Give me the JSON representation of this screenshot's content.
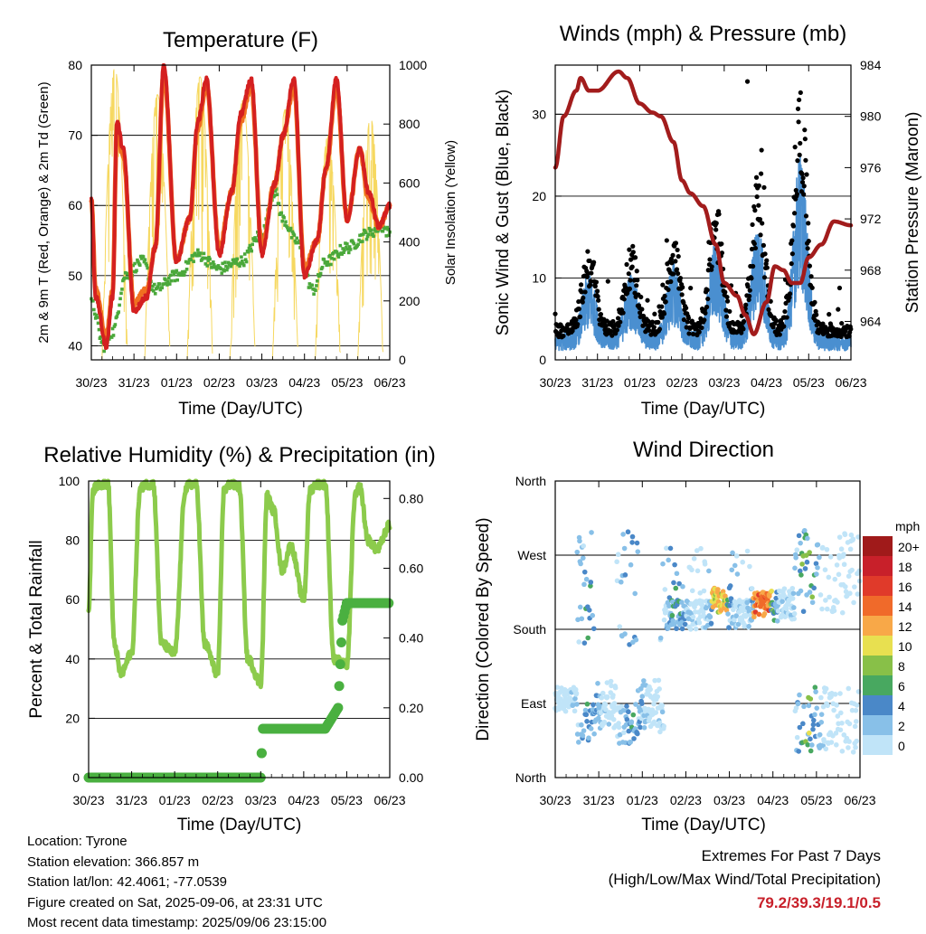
{
  "colors": {
    "red": "#d42020",
    "orange": "#f07020",
    "green": "#4aa83a",
    "yellow": "#f6d860",
    "black": "#000000",
    "blue": "#4a8fd0",
    "maroon": "#a21c1c",
    "rh": "#8ccb4c",
    "precip": "#4ab040",
    "extremes": "#c8202a"
  },
  "charts": {
    "temperature": {
      "title": "Temperature (F)",
      "xlabel": "Time (Day/UTC)",
      "ylabel": "2m & 9m T (Red, Orange) & 2m Td (Green)",
      "ylabel_right": "Solar Insolation (Yellow)"
    },
    "wind": {
      "title": "Winds (mph) & Pressure (mb)",
      "xlabel": "Time (Day/UTC)",
      "ylabel": "Sonic Wind & Gust (Blue, Black)",
      "ylabel_right": "Station Pressure (Maroon)"
    },
    "rh": {
      "title": "Relative Humidity (%) & Precipitation (in)",
      "xlabel": "Time (Day/UTC)",
      "ylabel": "Percent & Total Rainfall"
    },
    "direction": {
      "title": "Wind Direction",
      "xlabel": "Time (Day/UTC)",
      "ylabel": "Direction (Colored By Speed)",
      "colorbar_title": "mph"
    }
  },
  "chart_data": [
    {
      "type": "line",
      "title": "Temperature (F)",
      "xlabel": "Time (Day/UTC)",
      "ylabel": "2m & 9m T (Red, Orange) & 2m Td (Green)",
      "ylabel_right": "Solar Insolation (Yellow)",
      "x_ticks": [
        "30/23",
        "31/23",
        "01/23",
        "02/23",
        "03/23",
        "04/23",
        "05/23",
        "06/23"
      ],
      "xlim_days": [
        0,
        7.0
      ],
      "ylim": [
        38,
        80
      ],
      "y_ticks": [
        40,
        50,
        60,
        70,
        80
      ],
      "y2lim": [
        0,
        1000
      ],
      "y2_ticks": [
        0,
        200,
        400,
        600,
        800,
        1000
      ],
      "series": [
        {
          "name": "2m T",
          "x": [
            0,
            0.1,
            0.35,
            0.5,
            0.6,
            0.75,
            1.0,
            1.3,
            1.5,
            1.7,
            2.0,
            2.3,
            2.5,
            2.7,
            3.0,
            3.3,
            3.5,
            3.75,
            4.0,
            4.3,
            4.5,
            4.75,
            5.0,
            5.3,
            5.5,
            5.75,
            6.0,
            6.3,
            6.5,
            6.75,
            7.0
          ],
          "y": [
            61,
            47,
            40,
            47,
            72,
            68,
            45,
            47,
            54,
            80,
            52,
            58,
            72,
            78,
            53,
            62,
            73,
            78,
            53,
            63,
            70,
            78,
            50,
            55,
            65,
            78,
            58,
            68,
            62,
            57,
            60
          ]
        },
        {
          "name": "9m T",
          "x": [
            0,
            0.1,
            0.35,
            0.5,
            0.6,
            0.75,
            1.0,
            1.3,
            1.5,
            1.7,
            2.0,
            2.3,
            2.5,
            2.7,
            3.0,
            3.3,
            3.5,
            3.75,
            4.0,
            4.3,
            4.5,
            4.75,
            5.0,
            5.3,
            5.5,
            5.75,
            6.0,
            6.3,
            6.5,
            6.75,
            7.0
          ],
          "y": [
            61,
            48,
            41,
            48,
            71,
            67,
            46,
            48,
            54,
            79,
            52,
            58,
            71,
            77,
            54,
            62,
            72,
            77,
            54,
            63,
            70,
            77,
            51,
            55,
            65,
            77,
            58,
            68,
            61,
            57,
            60
          ]
        },
        {
          "name": "2m Td",
          "x": [
            0,
            0.3,
            0.5,
            0.8,
            1.2,
            1.5,
            2.0,
            2.5,
            3.0,
            3.5,
            4.0,
            4.3,
            4.5,
            4.8,
            5.2,
            5.5,
            6.0,
            6.5,
            6.8,
            7.0
          ],
          "y": [
            46,
            40,
            42,
            50,
            52,
            48,
            50,
            53,
            51,
            52,
            56,
            62,
            58,
            55,
            48,
            52,
            54,
            56,
            57,
            56
          ]
        },
        {
          "name": "Solar Insolation",
          "axis": "right",
          "peaks_x": [
            0.55,
            1.55,
            2.55,
            3.55,
            4.55,
            5.55,
            6.55
          ],
          "peaks_y": [
            990,
            900,
            960,
            880,
            850,
            760,
            820
          ]
        }
      ]
    },
    {
      "type": "line",
      "title": "Winds (mph) & Pressure (mb)",
      "xlabel": "Time (Day/UTC)",
      "ylabel": "Sonic Wind & Gust (Blue, Black)",
      "ylabel_right": "Station Pressure (Maroon)",
      "x_ticks": [
        "30/23",
        "31/23",
        "01/23",
        "02/23",
        "03/23",
        "04/23",
        "05/23",
        "06/23"
      ],
      "xlim_days": [
        0,
        7.0
      ],
      "ylim": [
        0,
        36
      ],
      "y_ticks": [
        0,
        10,
        20,
        30
      ],
      "y2lim": [
        961,
        984
      ],
      "y2_ticks": [
        964,
        968,
        972,
        976,
        980,
        984
      ],
      "series": [
        {
          "name": "Pressure",
          "axis": "right",
          "x": [
            0,
            0.2,
            0.5,
            0.6,
            0.8,
            1.0,
            1.5,
            1.7,
            2.0,
            2.3,
            2.5,
            2.8,
            3.0,
            3.2,
            3.5,
            3.8,
            4.0,
            4.3,
            4.5,
            4.7,
            5.0,
            5.2,
            5.4,
            5.6,
            5.8,
            6.0,
            6.3,
            6.6,
            7.0
          ],
          "y": [
            976,
            980,
            982,
            983,
            982,
            982,
            983.5,
            983,
            981,
            980.3,
            980,
            978,
            975,
            974,
            973,
            970,
            967,
            966,
            964.5,
            963,
            965.5,
            968.3,
            968,
            967,
            967,
            969,
            970,
            971.8,
            971.5
          ]
        },
        {
          "name": "Sonic Wind",
          "daily_peaks_x": [
            0.8,
            1.8,
            2.8,
            3.8,
            4.8,
            5.8
          ],
          "daily_peaks_y": [
            8,
            8,
            9,
            11,
            13,
            19
          ]
        },
        {
          "name": "Gust",
          "max": 34
        }
      ]
    },
    {
      "type": "line",
      "title": "Relative Humidity (%) & Precipitation (in)",
      "xlabel": "Time (Day/UTC)",
      "ylabel": "Percent & Total Rainfall",
      "x_ticks": [
        "30/23",
        "31/23",
        "01/23",
        "02/23",
        "03/23",
        "04/23",
        "05/23",
        "06/23"
      ],
      "xlim_days": [
        0,
        7.0
      ],
      "ylim": [
        0,
        100
      ],
      "y_ticks": [
        0,
        20,
        40,
        60,
        80,
        100
      ],
      "y2lim": [
        0,
        0.85
      ],
      "y2_ticks": [
        0.0,
        0.2,
        0.4,
        0.6,
        0.8
      ],
      "series": [
        {
          "name": "Relative Humidity",
          "x": [
            0,
            0.1,
            0.25,
            0.45,
            0.6,
            0.75,
            1.0,
            1.2,
            1.3,
            1.5,
            1.7,
            2.0,
            2.25,
            2.35,
            2.5,
            2.7,
            3.0,
            3.15,
            3.3,
            3.5,
            3.7,
            4.0,
            4.15,
            4.3,
            4.5,
            4.7,
            5.0,
            5.15,
            5.3,
            5.5,
            5.7,
            6.0,
            6.2,
            6.3,
            6.5,
            6.7,
            7.0
          ],
          "y": [
            57,
            97,
            99,
            99,
            45,
            35,
            42,
            97,
            99,
            99,
            45,
            42,
            97,
            99,
            99,
            45,
            35,
            97,
            99,
            98,
            40,
            32,
            95,
            90,
            70,
            78,
            60,
            97,
            99,
            99,
            40,
            38,
            95,
            98,
            80,
            77,
            85
          ]
        },
        {
          "name": "Total Precipitation",
          "axis": "right",
          "x": [
            0,
            4.0,
            4.05,
            4.2,
            5.5,
            5.8,
            5.9,
            6.0,
            7.0
          ],
          "y": [
            0,
            0,
            0.14,
            0.14,
            0.14,
            0.2,
            0.45,
            0.5,
            0.5
          ]
        }
      ]
    },
    {
      "type": "scatter",
      "title": "Wind Direction",
      "xlabel": "Time (Day/UTC)",
      "ylabel": "Direction (Colored By Speed)",
      "x_ticks": [
        "30/23",
        "31/23",
        "01/23",
        "02/23",
        "03/23",
        "04/23",
        "05/23",
        "06/23"
      ],
      "xlim_days": [
        0,
        7.0
      ],
      "y_ticks": [
        "North",
        "East",
        "South",
        "West",
        "North"
      ],
      "ylim_deg": [
        0,
        360
      ],
      "colorbar": {
        "title": "mph",
        "labels": [
          "20+",
          "18",
          "16",
          "14",
          "12",
          "10",
          "8",
          "6",
          "4",
          "2",
          "0"
        ],
        "colors": [
          "#a01a1a",
          "#c8202a",
          "#e03a2a",
          "#f06a2a",
          "#f8a848",
          "#e8e050",
          "#88c048",
          "#48a860",
          "#4a88c8",
          "#88c0e8",
          "#c0e4f8"
        ]
      }
    }
  ],
  "info": {
    "location": "Location: Tyrone",
    "elevation": "Station elevation: 366.857 m",
    "latlon": "Station lat/lon: 42.4061; -77.0539",
    "created": "Figure created on Sat, 2025-09-06, at 23:31 UTC",
    "recent": "Most recent data timestamp: 2025/09/06 23:15:00"
  },
  "extremes": {
    "title": "Extremes For Past 7 Days",
    "subtitle": "(High/Low/Max Wind/Total Precipitation)",
    "value": "79.2/39.3/19.1/0.5"
  }
}
